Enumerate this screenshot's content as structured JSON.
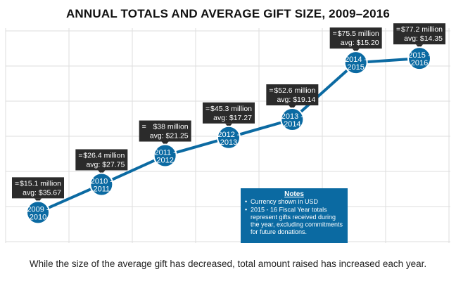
{
  "chart_data": {
    "type": "line",
    "title": "ANNUAL TOTALS AND AVERAGE GIFT SIZE, 2009–2016",
    "xlabel": "",
    "ylabel": "",
    "grid": true,
    "categories": [
      {
        "top": "2009 -",
        "bottom": "2010"
      },
      {
        "top": "2010 -",
        "bottom": "2011"
      },
      {
        "top": "2011 -",
        "bottom": "2012"
      },
      {
        "top": "2012 -",
        "bottom": "2013"
      },
      {
        "top": "2013 -",
        "bottom": "2014"
      },
      {
        "top": "2014 -",
        "bottom": "2015"
      },
      {
        "top": "2015 -",
        "bottom": "2016"
      }
    ],
    "totals_millions": [
      15.1,
      26.4,
      38,
      45.3,
      52.6,
      75.5,
      77.2
    ],
    "average_gift": [
      35.67,
      27.75,
      21.25,
      17.27,
      19.14,
      15.2,
      14.35
    ],
    "callouts": [
      {
        "marker": "=",
        "total": "$15.1 million",
        "avg": "avg: $35.67"
      },
      {
        "marker": "=",
        "total": "$26.4 million",
        "avg": "avg: $27.75"
      },
      {
        "marker": "=",
        "total": "$38 million",
        "avg": "avg: $21.25"
      },
      {
        "marker": "=",
        "total": "$45.3 million",
        "avg": "avg: $17.27"
      },
      {
        "marker": "=",
        "total": "$52.6 million",
        "avg": "avg: $19.14"
      },
      {
        "marker": "=",
        "total": "$75.5 million",
        "avg": "avg: $15.20"
      },
      {
        "marker": "=",
        "total": "$77.2 million",
        "avg": "avg: $14.35"
      }
    ],
    "ylim": [
      5,
      90
    ],
    "colors": {
      "line": "#0b6aa2",
      "node": "#0b6aa2",
      "node_stroke": "#ffffff",
      "callout_bg": "#2b2b2b",
      "notes_bg": "#0b6aa2",
      "grid": "#dddddd"
    }
  },
  "notes": {
    "title": "Notes",
    "items": [
      [
        "Currency shown in USD"
      ],
      [
        "2015 - 16 Fiscal Year totals",
        "represent gifts received during",
        "the year, excluding commitments",
        "for future donations."
      ]
    ]
  },
  "caption": "While the size of the average gift has decreased, total amount raised has increased each year."
}
